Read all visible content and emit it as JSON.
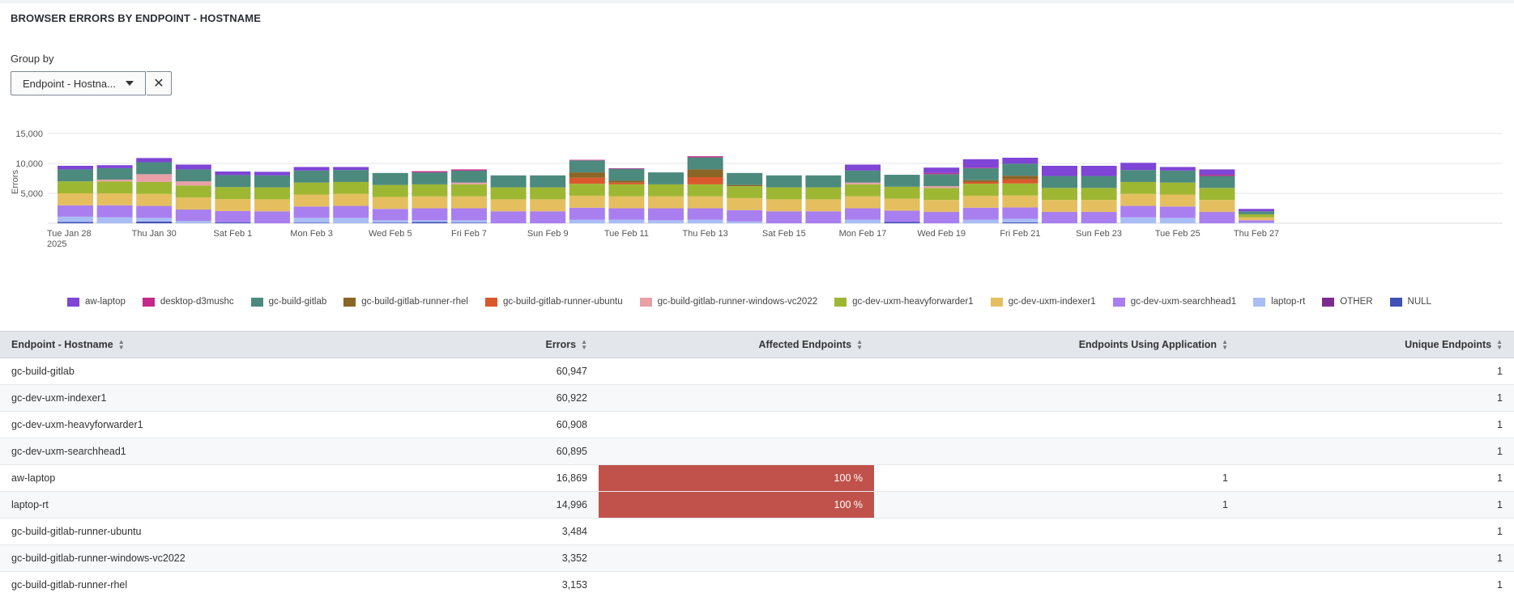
{
  "panel": {
    "title": "BROWSER ERRORS BY ENDPOINT - HOSTNAME",
    "group_by_label": "Group by",
    "group_by_value": "Endpoint - Hostna...",
    "clear_icon": "close-icon"
  },
  "chart_data": {
    "type": "bar",
    "stacked": true,
    "ylabel": "Errors",
    "ylim": [
      0,
      15000
    ],
    "yticks": [
      "5,000",
      "10,000",
      "15,000"
    ],
    "ytick_values": [
      5000,
      10000,
      15000
    ],
    "grid": true,
    "legend_position": "bottom-left",
    "x_tick_labels": [
      {
        "index": 0,
        "label": "Tue Jan 28",
        "sub": "2025"
      },
      {
        "index": 2,
        "label": "Thu Jan 30"
      },
      {
        "index": 4,
        "label": "Sat Feb 1"
      },
      {
        "index": 6,
        "label": "Mon Feb 3"
      },
      {
        "index": 8,
        "label": "Wed Feb 5"
      },
      {
        "index": 10,
        "label": "Fri Feb 7"
      },
      {
        "index": 12,
        "label": "Sun Feb 9"
      },
      {
        "index": 14,
        "label": "Tue Feb 11"
      },
      {
        "index": 16,
        "label": "Thu Feb 13"
      },
      {
        "index": 18,
        "label": "Sat Feb 15"
      },
      {
        "index": 20,
        "label": "Mon Feb 17"
      },
      {
        "index": 22,
        "label": "Wed Feb 19"
      },
      {
        "index": 24,
        "label": "Fri Feb 21"
      },
      {
        "index": 26,
        "label": "Sun Feb 23"
      },
      {
        "index": 28,
        "label": "Tue Feb 25"
      },
      {
        "index": 30,
        "label": "Thu Feb 27"
      }
    ],
    "categories": [
      "2025-01-28",
      "2025-01-29",
      "2025-01-30",
      "2025-01-31",
      "2025-02-01",
      "2025-02-02",
      "2025-02-03",
      "2025-02-04",
      "2025-02-05",
      "2025-02-06",
      "2025-02-07",
      "2025-02-08",
      "2025-02-09",
      "2025-02-10",
      "2025-02-11",
      "2025-02-12",
      "2025-02-13",
      "2025-02-14",
      "2025-02-15",
      "2025-02-16",
      "2025-02-17",
      "2025-02-18",
      "2025-02-19",
      "2025-02-20",
      "2025-02-21",
      "2025-02-22",
      "2025-02-23",
      "2025-02-24",
      "2025-02-25",
      "2025-02-26",
      "2025-02-27"
    ],
    "series": [
      {
        "name": "NULL",
        "color": "#3f51b5",
        "values": [
          200,
          0,
          300,
          0,
          150,
          0,
          100,
          0,
          100,
          200,
          100,
          0,
          0,
          0,
          0,
          0,
          0,
          0,
          0,
          0,
          0,
          200,
          0,
          0,
          150,
          0,
          0,
          0,
          0,
          0,
          0
        ]
      },
      {
        "name": "OTHER",
        "color": "#7b2d8e",
        "values": [
          0,
          0,
          0,
          0,
          0,
          0,
          0,
          0,
          0,
          0,
          0,
          0,
          0,
          0,
          0,
          0,
          0,
          0,
          0,
          0,
          0,
          0,
          0,
          0,
          0,
          0,
          0,
          0,
          0,
          0,
          0
        ]
      },
      {
        "name": "laptop-rt",
        "color": "#a9bdf5",
        "values": [
          900,
          1000,
          600,
          400,
          0,
          0,
          800,
          900,
          400,
          300,
          400,
          0,
          0,
          600,
          600,
          500,
          600,
          300,
          0,
          0,
          600,
          0,
          0,
          600,
          600,
          0,
          0,
          1000,
          900,
          0,
          100
        ]
      },
      {
        "name": "gc-dev-uxm-searchhead1",
        "color": "#a97ff0",
        "values": [
          1900,
          2000,
          2000,
          1900,
          1900,
          2000,
          1900,
          2000,
          1900,
          2000,
          2000,
          2000,
          2000,
          2000,
          1900,
          2000,
          1900,
          1900,
          2000,
          2000,
          1900,
          1900,
          1900,
          2000,
          1900,
          1900,
          1900,
          1900,
          1900,
          1900,
          400
        ]
      },
      {
        "name": "gc-dev-uxm-indexer1",
        "color": "#e5bf5f",
        "values": [
          2000,
          2000,
          2000,
          2000,
          2000,
          2000,
          2000,
          2000,
          2000,
          2000,
          2000,
          2000,
          2000,
          2000,
          2000,
          2000,
          2000,
          2000,
          2000,
          2000,
          2000,
          2000,
          2000,
          2000,
          2000,
          2000,
          2000,
          2000,
          2000,
          2000,
          500
        ]
      },
      {
        "name": "gc-dev-uxm-heavyforwarder1",
        "color": "#9eb733",
        "values": [
          2000,
          2000,
          2000,
          2000,
          2000,
          2000,
          2000,
          2000,
          2000,
          2000,
          2000,
          2000,
          2000,
          2000,
          2000,
          2000,
          2000,
          2000,
          2000,
          2000,
          2000,
          2000,
          2000,
          2000,
          2000,
          2000,
          2000,
          2000,
          2000,
          2000,
          500
        ]
      },
      {
        "name": "gc-build-gitlab-runner-windows-vc2022",
        "color": "#e89fa6",
        "values": [
          0,
          300,
          1300,
          700,
          0,
          0,
          0,
          0,
          0,
          0,
          300,
          0,
          0,
          0,
          0,
          0,
          0,
          0,
          0,
          0,
          300,
          0,
          300,
          0,
          0,
          0,
          0,
          0,
          0,
          0,
          0
        ]
      },
      {
        "name": "gc-build-gitlab-runner-ubuntu",
        "color": "#d9582c",
        "values": [
          0,
          0,
          0,
          0,
          0,
          0,
          0,
          0,
          0,
          0,
          0,
          0,
          0,
          1000,
          300,
          0,
          1200,
          0,
          0,
          0,
          0,
          0,
          0,
          300,
          700,
          0,
          0,
          0,
          0,
          0,
          0
        ]
      },
      {
        "name": "gc-build-gitlab-runner-rhel",
        "color": "#8b6526",
        "values": [
          0,
          0,
          0,
          0,
          0,
          0,
          0,
          0,
          0,
          0,
          0,
          0,
          0,
          900,
          300,
          0,
          1300,
          200,
          0,
          0,
          0,
          0,
          0,
          300,
          600,
          0,
          0,
          0,
          0,
          0,
          0
        ]
      },
      {
        "name": "gc-build-gitlab",
        "color": "#4c8a7e",
        "values": [
          2000,
          1900,
          2000,
          2000,
          2000,
          2000,
          2000,
          2000,
          2000,
          2000,
          2000,
          2000,
          2000,
          2000,
          2000,
          2000,
          2000,
          2000,
          2000,
          2000,
          2000,
          2000,
          2000,
          2000,
          2000,
          2000,
          2000,
          2000,
          2000,
          2000,
          500
        ]
      },
      {
        "name": "desktop-d3mushc",
        "color": "#c42a8c",
        "values": [
          0,
          0,
          0,
          0,
          0,
          0,
          0,
          0,
          0,
          200,
          200,
          0,
          0,
          100,
          100,
          0,
          200,
          0,
          0,
          0,
          0,
          0,
          200,
          100,
          0,
          0,
          0,
          0,
          0,
          200,
          0
        ]
      },
      {
        "name": "aw-laptop",
        "color": "#7e45d6",
        "values": [
          600,
          500,
          700,
          800,
          600,
          600,
          600,
          500,
          0,
          0,
          0,
          0,
          0,
          0,
          0,
          0,
          0,
          0,
          0,
          0,
          1000,
          0,
          900,
          1400,
          1000,
          1700,
          1700,
          1200,
          600,
          900,
          400
        ]
      }
    ],
    "legend": [
      {
        "label": "aw-laptop",
        "color": "#7e45d6"
      },
      {
        "label": "desktop-d3mushc",
        "color": "#c42a8c"
      },
      {
        "label": "gc-build-gitlab",
        "color": "#4c8a7e"
      },
      {
        "label": "gc-build-gitlab-runner-rhel",
        "color": "#8b6526"
      },
      {
        "label": "gc-build-gitlab-runner-ubuntu",
        "color": "#d9582c"
      },
      {
        "label": "gc-build-gitlab-runner-windows-vc2022",
        "color": "#e89fa6"
      },
      {
        "label": "gc-dev-uxm-heavyforwarder1",
        "color": "#9eb733"
      },
      {
        "label": "gc-dev-uxm-indexer1",
        "color": "#e5bf5f"
      },
      {
        "label": "gc-dev-uxm-searchhead1",
        "color": "#a97ff0"
      },
      {
        "label": "laptop-rt",
        "color": "#a9bdf5"
      },
      {
        "label": "OTHER",
        "color": "#7b2d8e"
      },
      {
        "label": "NULL",
        "color": "#3f51b5"
      }
    ]
  },
  "table": {
    "columns": [
      "Endpoint - Hostname",
      "Errors",
      "Affected Endpoints",
      "Endpoints Using Application",
      "Unique Endpoints"
    ],
    "rows": [
      {
        "host": "gc-build-gitlab",
        "errors": "60,947",
        "affected": "",
        "affected_pct": 0,
        "using": "",
        "unique": "1"
      },
      {
        "host": "gc-dev-uxm-indexer1",
        "errors": "60,922",
        "affected": "",
        "affected_pct": 0,
        "using": "",
        "unique": "1"
      },
      {
        "host": "gc-dev-uxm-heavyforwarder1",
        "errors": "60,908",
        "affected": "",
        "affected_pct": 0,
        "using": "",
        "unique": "1"
      },
      {
        "host": "gc-dev-uxm-searchhead1",
        "errors": "60,895",
        "affected": "",
        "affected_pct": 0,
        "using": "",
        "unique": "1"
      },
      {
        "host": "aw-laptop",
        "errors": "16,869",
        "affected": "100 %",
        "affected_pct": 100,
        "using": "1",
        "unique": "1"
      },
      {
        "host": "laptop-rt",
        "errors": "14,996",
        "affected": "100 %",
        "affected_pct": 100,
        "using": "1",
        "unique": "1"
      },
      {
        "host": "gc-build-gitlab-runner-ubuntu",
        "errors": "3,484",
        "affected": "",
        "affected_pct": 0,
        "using": "",
        "unique": "1"
      },
      {
        "host": "gc-build-gitlab-runner-windows-vc2022",
        "errors": "3,352",
        "affected": "",
        "affected_pct": 0,
        "using": "",
        "unique": "1"
      },
      {
        "host": "gc-build-gitlab-runner-rhel",
        "errors": "3,153",
        "affected": "",
        "affected_pct": 0,
        "using": "",
        "unique": "1"
      }
    ]
  }
}
